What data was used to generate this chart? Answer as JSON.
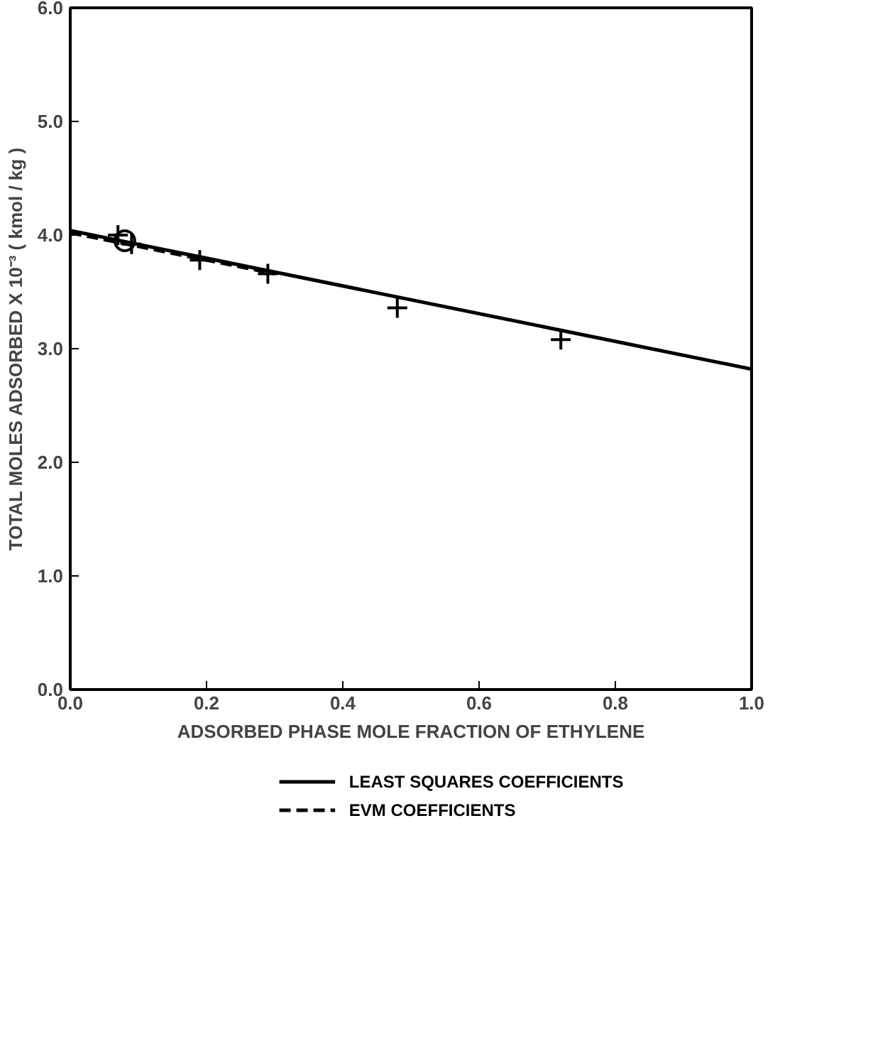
{
  "chart_data": {
    "type": "scatter",
    "xlabel": "ADSORBED PHASE MOLE FRACTION OF ETHYLENE",
    "ylabel": "TOTAL MOLES ADSORBED X 10⁻³ ( kmol / kg )",
    "xlim": [
      0.0,
      1.0
    ],
    "ylim": [
      0.0,
      6.0
    ],
    "xticks": [
      {
        "value": 0,
        "label": "0.0"
      },
      0.2,
      0.4,
      0.6,
      0.8,
      {
        "value": 1,
        "label": "1.0"
      }
    ],
    "yticks": [
      {
        "value": 0,
        "label": "0.0"
      },
      {
        "value": 1,
        "label": "1.0"
      },
      {
        "value": 2,
        "label": "2.0"
      },
      {
        "value": 3,
        "label": "3.0"
      },
      {
        "value": 4,
        "label": "4.0"
      },
      {
        "value": 5,
        "label": "5.0"
      },
      {
        "value": 6,
        "label": "6.0"
      }
    ],
    "grid": false,
    "legend": "bottom",
    "series": [
      {
        "type": "line",
        "name": "LEAST SQUARES COEFFICIENTS",
        "color": "#000000",
        "line_style": "solid",
        "x": [
          0.0,
          1.0
        ],
        "values": [
          4.04,
          2.82
        ]
      },
      {
        "type": "line",
        "name": "EVM COEFFICIENTS",
        "color": "#000000",
        "line_style": "dashed",
        "x": [
          0.0,
          0.3
        ],
        "values": [
          4.02,
          3.66
        ]
      },
      {
        "color": "#000000",
        "marker": "cross",
        "x": [
          0.07,
          0.09,
          0.19,
          0.29,
          0.48,
          0.72
        ],
        "values": [
          4.0,
          3.92,
          3.78,
          3.66,
          3.36,
          3.08
        ]
      },
      {
        "color": "#000000",
        "marker": "circle",
        "x": [
          0.08
        ],
        "values": [
          3.95
        ]
      }
    ]
  }
}
